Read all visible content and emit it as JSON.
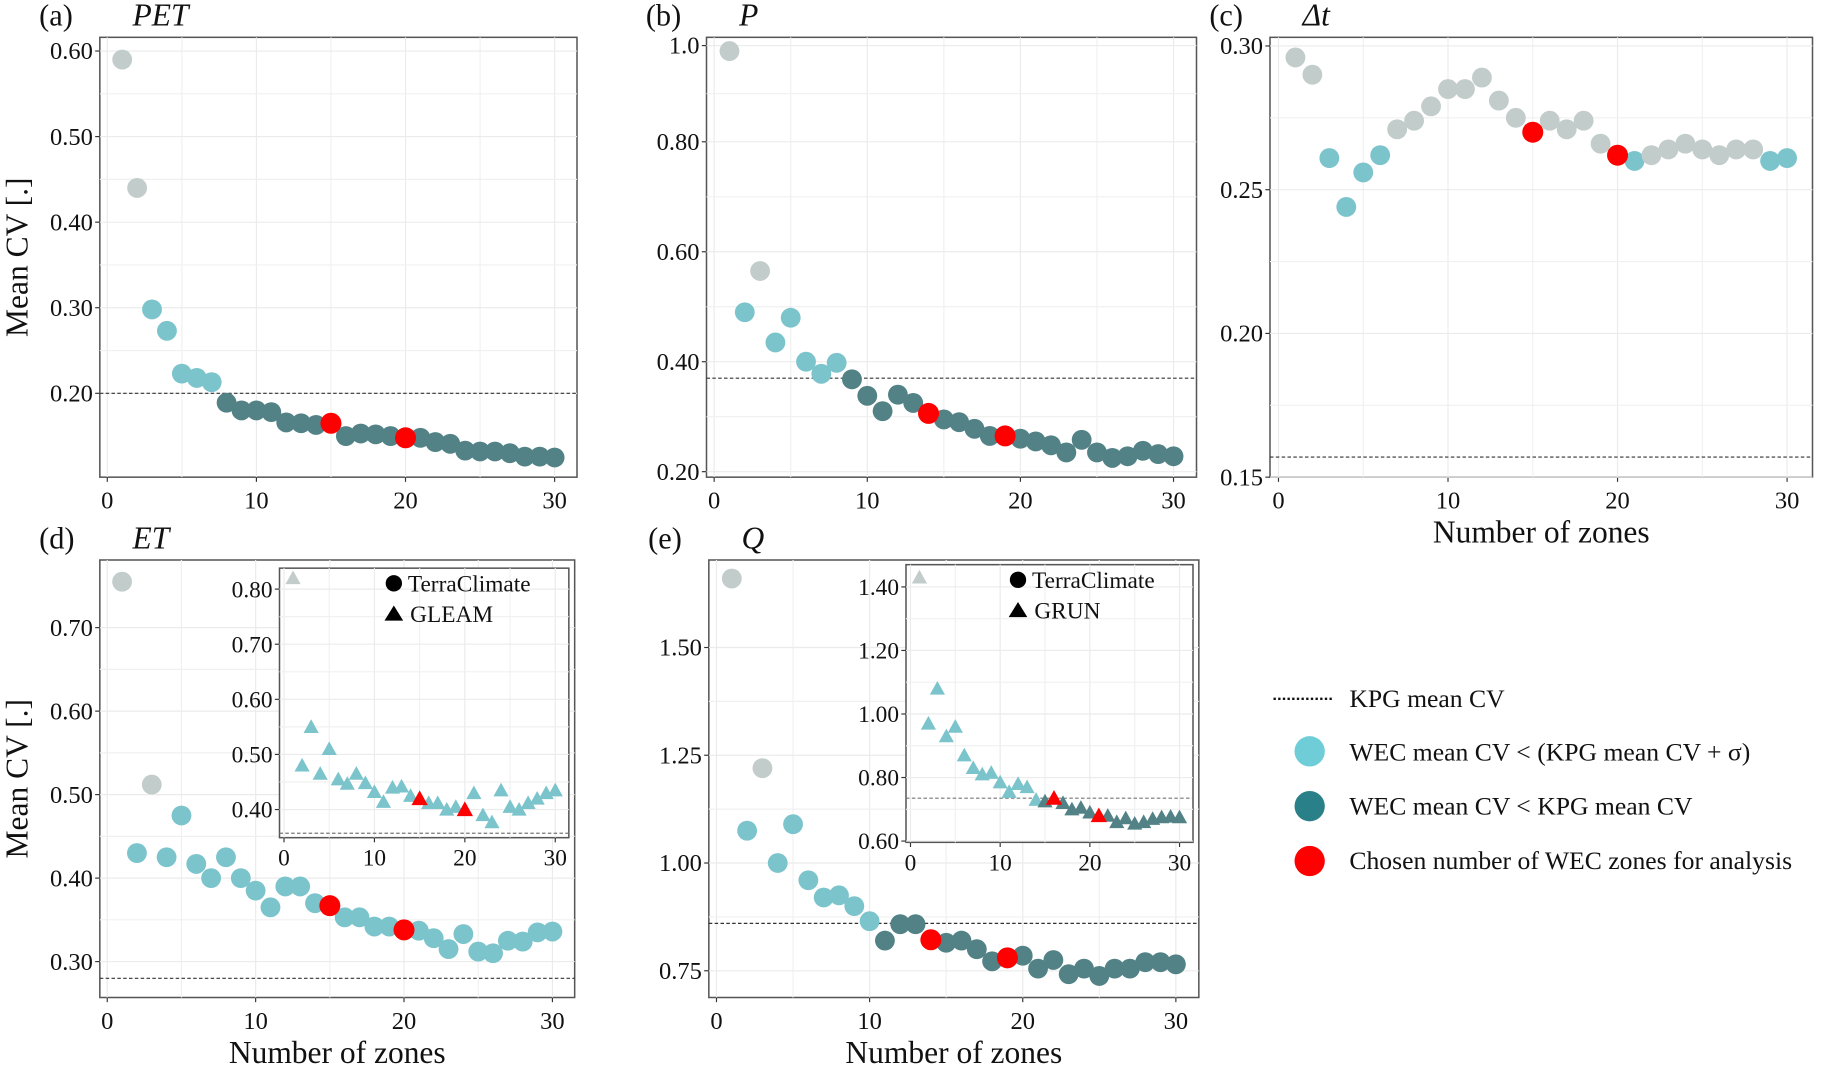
{
  "colors": {
    "above": "#c2cccb",
    "within_sigma": "#7bc4cc",
    "below": "#528286",
    "chosen": "#ff0000",
    "legend_within_sigma": "#6ecdd6",
    "legend_below": "#2a8088"
  },
  "legend": {
    "kpg": "KPG mean CV",
    "within_sigma": "WEC mean CV < (KPG mean CV + σ)",
    "below": "WEC mean CV < KPG mean CV",
    "chosen": "Chosen number of WEC zones for analysis"
  },
  "chart_data": [
    {
      "id": "a",
      "type": "scatter",
      "label": "(a)",
      "title": "PET",
      "xlabel": "",
      "ylabel": "Mean CV [.]",
      "xlim": [
        -0.5,
        31.5
      ],
      "ylim": [
        0.102,
        0.616
      ],
      "xticks": [
        0,
        10,
        20,
        30
      ],
      "yticks": [
        0.2,
        0.3,
        0.4,
        0.5,
        0.6
      ],
      "ytick_labels": [
        "0.20",
        "0.30",
        "0.40",
        "0.50",
        "0.60"
      ],
      "kpg_mean_cv": 0.2,
      "x": [
        1,
        2,
        3,
        4,
        5,
        6,
        7,
        8,
        9,
        10,
        11,
        12,
        13,
        14,
        15,
        16,
        17,
        18,
        19,
        20,
        21,
        22,
        23,
        24,
        25,
        26,
        27,
        28,
        29,
        30
      ],
      "y": [
        0.59,
        0.44,
        0.298,
        0.273,
        0.223,
        0.218,
        0.213,
        0.189,
        0.18,
        0.18,
        0.178,
        0.166,
        0.165,
        0.163,
        0.165,
        0.15,
        0.153,
        0.152,
        0.15,
        0.148,
        0.148,
        0.143,
        0.141,
        0.133,
        0.132,
        0.132,
        0.13,
        0.126,
        0.126,
        0.125
      ],
      "class": "ggllllldddddddrddddrdddddddddd"
    },
    {
      "id": "b",
      "type": "scatter",
      "label": "(b)",
      "title": "P",
      "xlabel": "",
      "ylabel": "",
      "xlim": [
        -0.5,
        31.5
      ],
      "ylim": [
        0.19,
        0.99
      ],
      "xticks": [
        0,
        10,
        20,
        30
      ],
      "yticks": [
        0.2,
        0.4,
        0.6,
        0.8,
        0.975
      ],
      "ytick_labels": [
        "0.20",
        "0.40",
        "0.60",
        "0.80",
        "1.0"
      ],
      "kpg_mean_cv": 0.37,
      "x": [
        1,
        2,
        3,
        4,
        5,
        6,
        7,
        8,
        9,
        10,
        11,
        12,
        13,
        14,
        15,
        16,
        17,
        18,
        19,
        20,
        21,
        22,
        23,
        24,
        25,
        26,
        27,
        28,
        29,
        30
      ],
      "y": [
        0.965,
        0.49,
        0.565,
        0.435,
        0.48,
        0.4,
        0.378,
        0.398,
        0.368,
        0.338,
        0.31,
        0.34,
        0.325,
        0.306,
        0.295,
        0.29,
        0.278,
        0.265,
        0.265,
        0.26,
        0.255,
        0.248,
        0.235,
        0.258,
        0.235,
        0.225,
        0.228,
        0.238,
        0.232,
        0.228
      ],
      "class": "glgllllldddddrddddrddddddddddd"
    },
    {
      "id": "c",
      "type": "scatter",
      "label": "(c)",
      "title": "Δt",
      "xlabel": "Number of zones",
      "ylabel": "",
      "xlim": [
        -0.5,
        31.5
      ],
      "ylim": [
        0.15,
        0.303
      ],
      "xticks": [
        0,
        10,
        20,
        30
      ],
      "yticks": [
        0.15,
        0.2,
        0.25,
        0.3
      ],
      "ytick_labels": [
        "0.15",
        "0.20",
        "0.25",
        "0.30"
      ],
      "kpg_mean_cv": 0.157,
      "x": [
        1,
        2,
        3,
        4,
        5,
        6,
        7,
        8,
        9,
        10,
        11,
        12,
        13,
        14,
        15,
        16,
        17,
        18,
        19,
        20,
        21,
        22,
        23,
        24,
        25,
        26,
        27,
        28,
        29,
        30
      ],
      "y": [
        0.296,
        0.29,
        0.261,
        0.244,
        0.256,
        0.262,
        0.271,
        0.274,
        0.279,
        0.285,
        0.285,
        0.289,
        0.281,
        0.275,
        0.27,
        0.274,
        0.271,
        0.274,
        0.266,
        0.262,
        0.26,
        0.262,
        0.264,
        0.266,
        0.264,
        0.262,
        0.264,
        0.264,
        0.26,
        0.261
      ],
      "class": "ggllllggggggggrggggrlgggggggll"
    },
    {
      "id": "d",
      "type": "scatter",
      "label": "(d)",
      "title": "ET",
      "xlabel": "Number of zones",
      "ylabel": "Mean CV [.]",
      "xlim": [
        -0.5,
        31.5
      ],
      "ylim": [
        0.257,
        0.781
      ],
      "xticks": [
        0,
        10,
        20,
        30
      ],
      "yticks": [
        0.3,
        0.4,
        0.5,
        0.6,
        0.7
      ],
      "ytick_labels": [
        "0.30",
        "0.40",
        "0.50",
        "0.60",
        "0.70"
      ],
      "kpg_mean_cv": 0.28,
      "x": [
        1,
        2,
        3,
        4,
        5,
        6,
        7,
        8,
        9,
        10,
        11,
        12,
        13,
        14,
        15,
        16,
        17,
        18,
        19,
        20,
        21,
        22,
        23,
        24,
        25,
        26,
        27,
        28,
        29,
        30
      ],
      "y": [
        0.755,
        0.43,
        0.512,
        0.425,
        0.475,
        0.417,
        0.4,
        0.425,
        0.4,
        0.385,
        0.365,
        0.39,
        0.39,
        0.37,
        0.367,
        0.353,
        0.353,
        0.342,
        0.342,
        0.338,
        0.337,
        0.328,
        0.315,
        0.333,
        0.312,
        0.31,
        0.325,
        0.324,
        0.335,
        0.336
      ],
      "class": "glglllllllllllrllllrllllllllll",
      "inset": {
        "legend": [
          "TerraClimate",
          "GLEAM"
        ],
        "xlim": [
          -0.5,
          31.5
        ],
        "ylim": [
          0.349,
          0.838
        ],
        "xticks": [
          0,
          10,
          20,
          30
        ],
        "yticks": [
          0.4,
          0.5,
          0.6,
          0.7,
          0.8
        ],
        "ytick_labels": [
          "0.40",
          "0.50",
          "0.60",
          "0.70",
          "0.80"
        ],
        "kpg_mean_cv": 0.357,
        "y": [
          0.82,
          0.48,
          0.55,
          0.465,
          0.51,
          0.455,
          0.447,
          0.465,
          0.448,
          0.432,
          0.414,
          0.44,
          0.442,
          0.425,
          0.42,
          0.412,
          0.412,
          0.4,
          0.405,
          0.4,
          0.43,
          0.39,
          0.377,
          0.435,
          0.405,
          0.4,
          0.412,
          0.42,
          0.43,
          0.435
        ],
        "class": "glllllllllllllrllllrllllllllll"
      }
    },
    {
      "id": "e",
      "type": "scatter",
      "label": "(e)",
      "title": "Q",
      "xlabel": "Number of zones",
      "ylabel": "",
      "xlim": [
        -0.5,
        31.5
      ],
      "ylim": [
        0.688,
        1.703
      ],
      "xticks": [
        0,
        10,
        20,
        30
      ],
      "yticks": [
        0.75,
        1.0,
        1.25,
        1.5
      ],
      "ytick_labels": [
        "0.75",
        "1.00",
        "1.25",
        "1.50"
      ],
      "kpg_mean_cv": 0.86,
      "x": [
        1,
        2,
        3,
        4,
        5,
        6,
        7,
        8,
        9,
        10,
        11,
        12,
        13,
        14,
        15,
        16,
        17,
        18,
        19,
        20,
        21,
        22,
        23,
        24,
        25,
        26,
        27,
        28,
        29,
        30
      ],
      "y": [
        1.66,
        1.075,
        1.22,
        1.0,
        1.09,
        0.96,
        0.92,
        0.925,
        0.9,
        0.865,
        0.82,
        0.858,
        0.858,
        0.822,
        0.815,
        0.82,
        0.8,
        0.772,
        0.78,
        0.785,
        0.755,
        0.775,
        0.742,
        0.755,
        0.738,
        0.755,
        0.755,
        0.77,
        0.77,
        0.765
      ],
      "class": "glgllllllldddrddddrddddddddddd",
      "inset": {
        "legend": [
          "TerraClimate",
          "GRUN"
        ],
        "xlim": [
          -0.5,
          31.5
        ],
        "ylim": [
          0.596,
          1.47
        ],
        "xticks": [
          0,
          10,
          20,
          30
        ],
        "yticks": [
          0.6,
          0.8,
          1.0,
          1.2,
          1.4
        ],
        "ytick_labels": [
          "0.60",
          "0.80",
          "1.00",
          "1.20",
          "1.40"
        ],
        "kpg_mean_cv": 0.735,
        "y": [
          1.43,
          0.97,
          1.08,
          0.93,
          0.96,
          0.87,
          0.83,
          0.81,
          0.815,
          0.785,
          0.755,
          0.78,
          0.77,
          0.73,
          0.725,
          0.735,
          0.72,
          0.7,
          0.705,
          0.69,
          0.68,
          0.68,
          0.66,
          0.672,
          0.655,
          0.66,
          0.67,
          0.675,
          0.677,
          0.675
        ],
        "class": "gllllllllllllldrddddrddddddddd"
      }
    }
  ]
}
